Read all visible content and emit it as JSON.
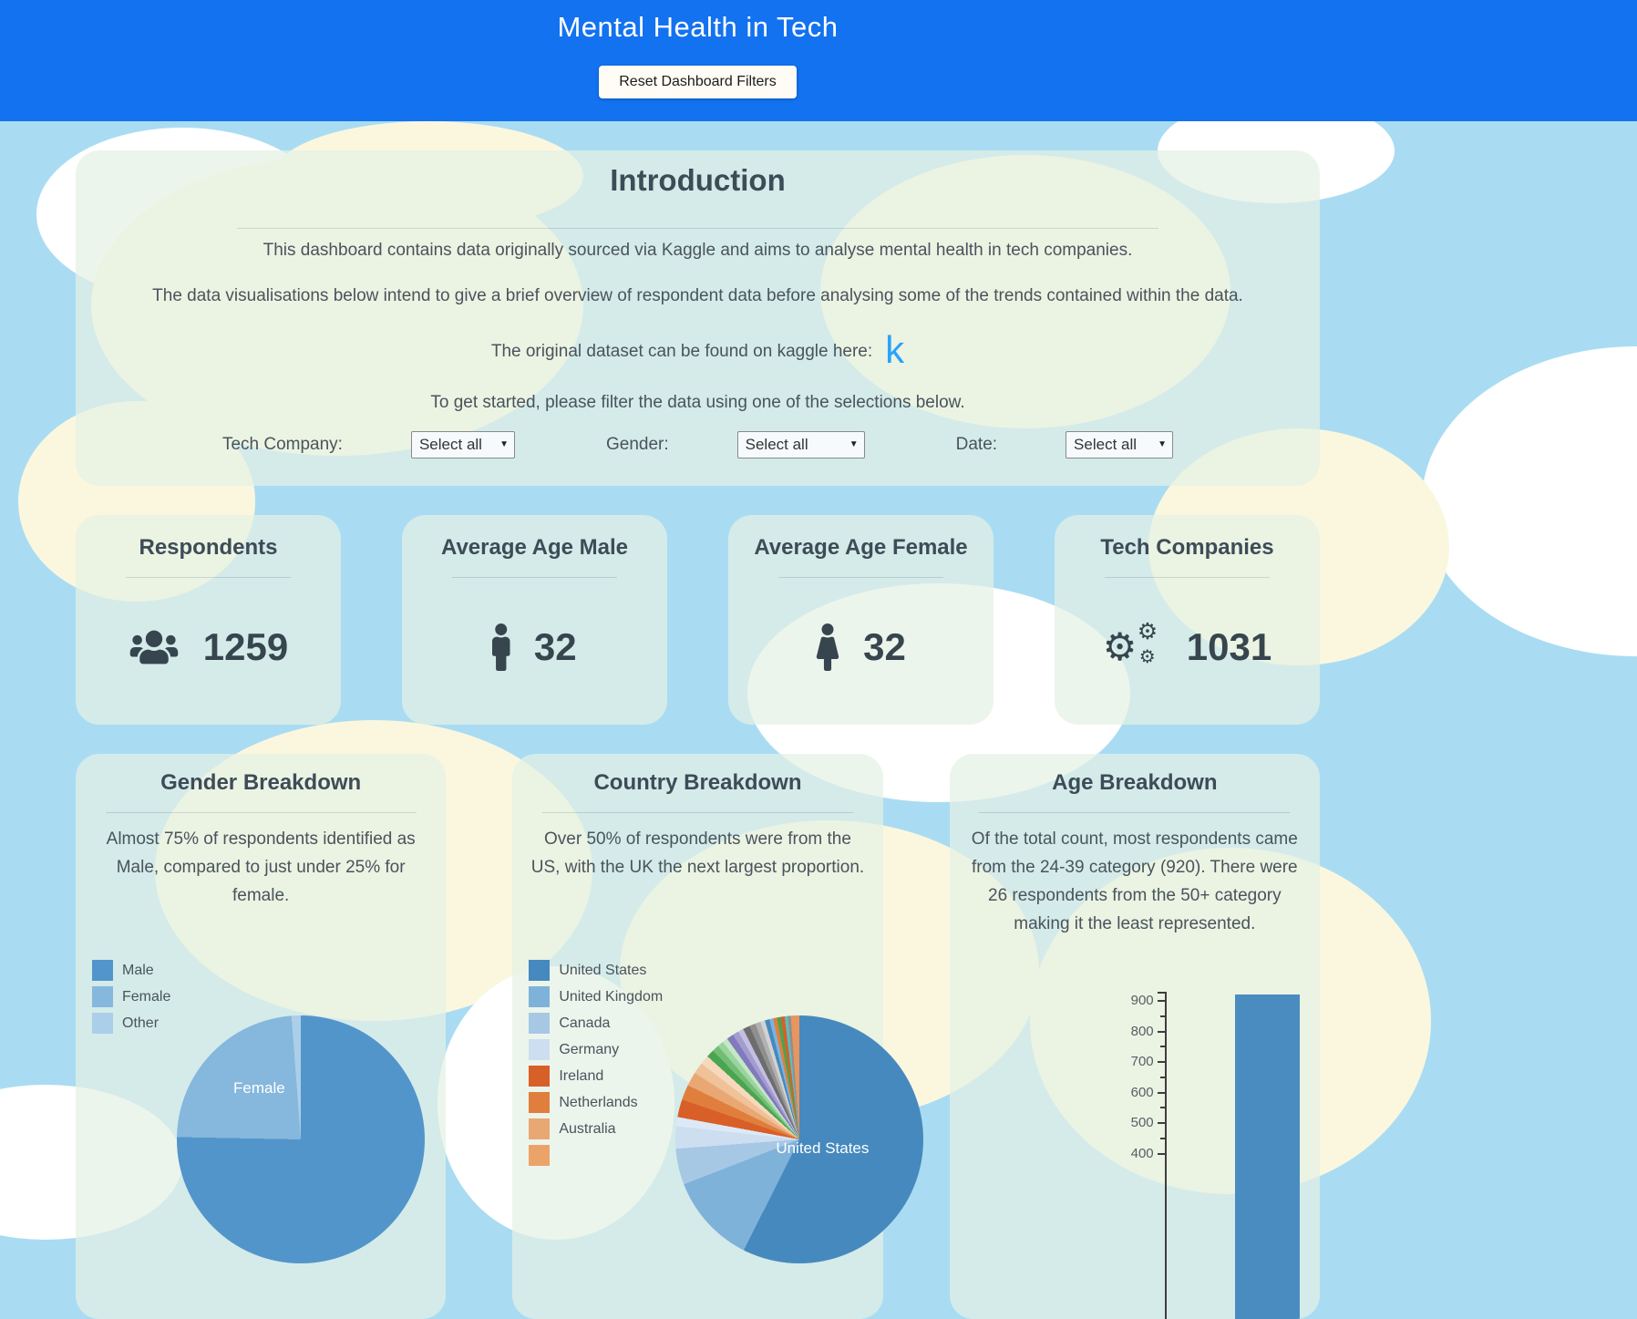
{
  "theme": {
    "header_blue": "#1372ef",
    "sky_blue": "#a9dcf2",
    "cloud_cream": "#fbf7df",
    "card_tint": "rgba(228,241,229,0.72)",
    "heading_color": "#3d4c57",
    "text_color": "#49545c",
    "kaggle_blue": "#2da2f8",
    "icon_color": "#37454e"
  },
  "header": {
    "title": "Mental Health in Tech",
    "reset_button": "Reset Dashboard Filters"
  },
  "intro": {
    "title": "Introduction",
    "p1": "This dashboard contains data originally sourced via Kaggle and aims to analyse mental health in tech companies.",
    "p2": "The data visualisations below intend to give a brief overview of respondent data before analysing some of the trends contained within the data.",
    "p3": "The original dataset can be found on kaggle here:",
    "kaggle_glyph": "k",
    "p4": "To get started, please filter the data using one of the selections below.",
    "filters": [
      {
        "label": "Tech Company:",
        "value": "Select all"
      },
      {
        "label": "Gender:",
        "value": "Select all"
      },
      {
        "label": "Date:",
        "value": "Select all"
      }
    ]
  },
  "stats": [
    {
      "title": "Respondents",
      "value": "1259",
      "icon": "users-icon"
    },
    {
      "title": "Average Age Male",
      "value": "32",
      "icon": "male-icon"
    },
    {
      "title": "Average Age Female",
      "value": "32",
      "icon": "female-icon"
    },
    {
      "title": "Tech Companies",
      "value": "1031",
      "icon": "cogs-icon"
    }
  ],
  "charts": {
    "gender": {
      "title": "Gender Breakdown",
      "description": "Almost 75% of respondents identified as Male, compared to just under 25% for female."
    },
    "country": {
      "title": "Country Breakdown",
      "description": "Over 50% of respondents were from the US, with the UK the next largest proportion."
    },
    "age": {
      "title": "Age Breakdown",
      "description": "Of the total count, most respondents came from the 24-39 category (920). There were 26 respondents from the 50+ category making it the least represented."
    }
  },
  "chart_data": [
    {
      "id": "gender",
      "type": "pie",
      "title": "Gender Breakdown",
      "inner_label": "Female",
      "legend": [
        {
          "label": "Male",
          "color": "#5295ca"
        },
        {
          "label": "Female",
          "color": "#86b7dd"
        },
        {
          "label": "Other",
          "color": "#abcfe9"
        }
      ],
      "slices": [
        {
          "label": "Male",
          "pct": 75.3,
          "color": "#5295ca"
        },
        {
          "label": "Female",
          "pct": 23.5,
          "color": "#86b7dd"
        },
        {
          "label": "Other",
          "pct": 1.2,
          "color": "#abcfe9"
        }
      ],
      "legend_position": "top-left"
    },
    {
      "id": "country",
      "type": "pie",
      "title": "Country Breakdown",
      "inner_label": "United States",
      "legend": [
        {
          "label": "United States",
          "color": "#4689be"
        },
        {
          "label": "United Kingdom",
          "color": "#7fb2d9"
        },
        {
          "label": "Canada",
          "color": "#a7c8e4"
        },
        {
          "label": "Germany",
          "color": "#cddef1"
        },
        {
          "label": "Ireland",
          "color": "#d95f28"
        },
        {
          "label": "Netherlands",
          "color": "#e07f3d"
        },
        {
          "label": "Australia",
          "color": "#e9a873"
        },
        {
          "label": "",
          "color": "#eca36a"
        }
      ],
      "slices": [
        {
          "label": "United States",
          "pct": 57.4,
          "color": "#4689be"
        },
        {
          "label": "United Kingdom",
          "pct": 11.7,
          "color": "#7fb2d9"
        },
        {
          "label": "Canada",
          "pct": 4.7,
          "color": "#a7c8e4"
        },
        {
          "label": "Germany",
          "pct": 2.9,
          "color": "#cddef1"
        },
        {
          "label": "",
          "pct": 1.2,
          "color": "#dde9f6"
        },
        {
          "label": "Ireland",
          "pct": 2.3,
          "color": "#d95f28"
        },
        {
          "label": "Netherlands",
          "pct": 2.0,
          "color": "#e07f3d"
        },
        {
          "label": "Australia",
          "pct": 1.8,
          "color": "#e9a873"
        },
        {
          "label": "",
          "pct": 1.5,
          "color": "#f0c29a"
        },
        {
          "label": "",
          "pct": 1.2,
          "color": "#f6d9bd"
        },
        {
          "label": "",
          "pct": 1.0,
          "color": "#49a550"
        },
        {
          "label": "",
          "pct": 0.9,
          "color": "#72bd76"
        },
        {
          "label": "",
          "pct": 0.8,
          "color": "#9bd49d"
        },
        {
          "label": "",
          "pct": 0.7,
          "color": "#c4e7c5"
        },
        {
          "label": "",
          "pct": 0.9,
          "color": "#8379bd"
        },
        {
          "label": "",
          "pct": 0.8,
          "color": "#a29ccf"
        },
        {
          "label": "",
          "pct": 0.7,
          "color": "#c3bfe1"
        },
        {
          "label": "",
          "pct": 0.9,
          "color": "#6d6d6d"
        },
        {
          "label": "",
          "pct": 0.8,
          "color": "#8f8f8f"
        },
        {
          "label": "",
          "pct": 0.7,
          "color": "#b1b1b1"
        },
        {
          "label": "",
          "pct": 0.6,
          "color": "#d2d2d2"
        },
        {
          "label": "",
          "pct": 0.6,
          "color": "#4689be"
        },
        {
          "label": "",
          "pct": 0.5,
          "color": "#7fb2d9"
        },
        {
          "label": "",
          "pct": 0.5,
          "color": "#e07f3d"
        },
        {
          "label": "",
          "pct": 0.5,
          "color": "#49a550"
        },
        {
          "label": "",
          "pct": 0.5,
          "color": "#d95f28"
        },
        {
          "label": "",
          "pct": 0.4,
          "color": "#5bbfbf"
        },
        {
          "label": "",
          "pct": 0.4,
          "color": "#8f8f8f"
        },
        {
          "label": "",
          "pct": 1.1,
          "color": "#e8955f"
        }
      ],
      "legend_position": "left"
    },
    {
      "id": "age",
      "type": "bar",
      "title": "Age Breakdown",
      "bar": {
        "category": "24-39",
        "value": 920
      },
      "bar_color": "#4a8cc0",
      "yticks": [
        900,
        800,
        700,
        600,
        500,
        400
      ],
      "minor_tick_step": 50,
      "ylim_visible": [
        400,
        920
      ]
    }
  ]
}
